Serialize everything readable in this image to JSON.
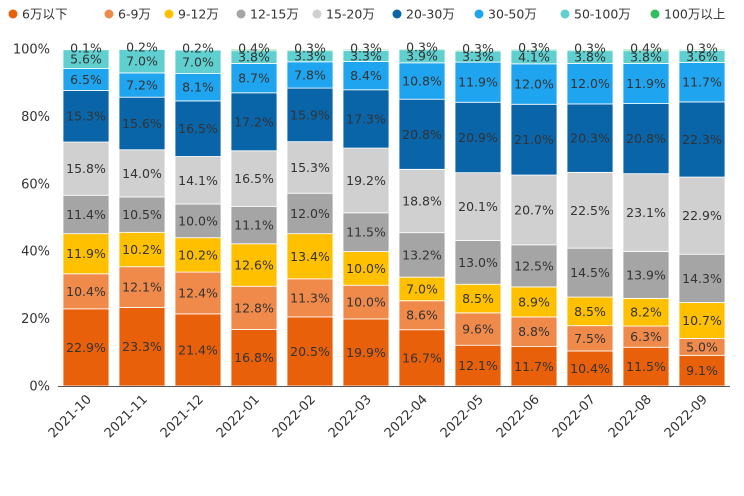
{
  "chart_data": {
    "type": "bar",
    "stacked": true,
    "normalized": true,
    "title": "",
    "xlabel": "",
    "ylabel": "",
    "ylim": [
      0,
      100
    ],
    "yticks": [
      "0%",
      "20%",
      "40%",
      "60%",
      "80%",
      "100%"
    ],
    "ytick_values": [
      0,
      20,
      40,
      60,
      80,
      100
    ],
    "legend_position": "top",
    "categories": [
      "2021-10",
      "2021-11",
      "2021-12",
      "2022-01",
      "2022-02",
      "2022-03",
      "2022-04",
      "2022-05",
      "2022-06",
      "2022-07",
      "2022-08",
      "2022-09"
    ],
    "series": [
      {
        "name": "6万以下",
        "color": "#e8600a",
        "values": [
          22.9,
          23.3,
          21.4,
          16.8,
          20.5,
          19.9,
          16.7,
          12.1,
          11.7,
          10.4,
          11.5,
          9.1
        ]
      },
      {
        "name": "6-9万",
        "color": "#f08a4b",
        "values": [
          10.4,
          12.1,
          12.4,
          12.8,
          11.3,
          10.0,
          8.6,
          9.6,
          8.8,
          7.5,
          6.3,
          5.0
        ]
      },
      {
        "name": "9-12万",
        "color": "#ffc000",
        "values": [
          11.9,
          10.2,
          10.2,
          12.6,
          13.4,
          10.0,
          7.0,
          8.5,
          8.9,
          8.5,
          8.2,
          10.7
        ]
      },
      {
        "name": "12-15万",
        "color": "#a5a5a5",
        "values": [
          11.4,
          10.5,
          10.0,
          11.1,
          12.0,
          11.5,
          13.2,
          13.0,
          12.5,
          14.5,
          13.9,
          14.3
        ]
      },
      {
        "name": "15-20万",
        "color": "#d0d0d0",
        "values": [
          15.8,
          14.0,
          14.1,
          16.5,
          15.3,
          19.2,
          18.8,
          20.1,
          20.7,
          22.5,
          23.1,
          22.9
        ]
      },
      {
        "name": "20-30万",
        "color": "#0a64a8",
        "values": [
          15.3,
          15.6,
          16.5,
          17.2,
          15.9,
          17.3,
          20.8,
          20.9,
          21.0,
          20.3,
          20.8,
          22.3
        ]
      },
      {
        "name": "30-50万",
        "color": "#1fa4f0",
        "values": [
          6.5,
          7.2,
          8.1,
          8.7,
          7.8,
          8.4,
          10.8,
          11.9,
          12.0,
          12.0,
          11.9,
          11.7
        ]
      },
      {
        "name": "50-100万",
        "color": "#5fcfcf",
        "values": [
          5.6,
          7.0,
          7.0,
          3.8,
          3.3,
          3.3,
          3.9,
          3.3,
          4.1,
          3.8,
          3.8,
          3.6
        ]
      },
      {
        "name": "100万以上",
        "color": "#2fbf5f",
        "values": [
          0.1,
          0.2,
          0.2,
          0.4,
          0.3,
          0.3,
          0.3,
          0.3,
          0.3,
          0.3,
          0.4,
          0.3
        ]
      }
    ]
  }
}
